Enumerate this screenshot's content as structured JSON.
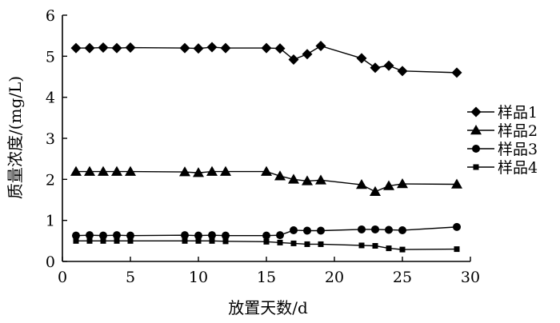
{
  "chart_data": {
    "type": "line",
    "xlabel": "放置天数/d",
    "ylabel": "质量浓度/(mg/L)",
    "xlim": [
      0,
      30
    ],
    "ylim": [
      0,
      6
    ],
    "x_ticks": [
      "0",
      "5",
      "10",
      "15",
      "20",
      "25",
      "30"
    ],
    "y_ticks": [
      "0",
      "1",
      "2",
      "3",
      "4",
      "5",
      "6"
    ],
    "grid": false,
    "legend_position": "right",
    "series": [
      {
        "name": "样品1",
        "marker": "diamond",
        "x": [
          1,
          2,
          3,
          4,
          5,
          9,
          10,
          11,
          12,
          15,
          16,
          17,
          18,
          19,
          22,
          23,
          24,
          25,
          29
        ],
        "y": [
          5.2,
          5.2,
          5.21,
          5.2,
          5.21,
          5.2,
          5.19,
          5.22,
          5.2,
          5.2,
          5.19,
          4.92,
          5.05,
          5.25,
          4.95,
          4.72,
          4.77,
          4.64,
          4.6
        ]
      },
      {
        "name": "样品2",
        "marker": "triangle",
        "x": [
          1,
          2,
          3,
          4,
          5,
          9,
          10,
          11,
          12,
          15,
          16,
          17,
          18,
          19,
          22,
          23,
          24,
          25,
          29
        ],
        "y": [
          2.19,
          2.19,
          2.19,
          2.19,
          2.19,
          2.18,
          2.16,
          2.19,
          2.19,
          2.19,
          2.08,
          2.0,
          1.96,
          1.98,
          1.87,
          1.7,
          1.84,
          1.89,
          1.88
        ]
      },
      {
        "name": "样品3",
        "marker": "circle",
        "x": [
          1,
          2,
          3,
          4,
          5,
          9,
          10,
          11,
          12,
          15,
          16,
          17,
          18,
          19,
          22,
          23,
          24,
          25,
          29
        ],
        "y": [
          0.63,
          0.64,
          0.63,
          0.64,
          0.63,
          0.64,
          0.63,
          0.64,
          0.63,
          0.63,
          0.64,
          0.76,
          0.75,
          0.75,
          0.78,
          0.78,
          0.77,
          0.76,
          0.84
        ]
      },
      {
        "name": "样品4",
        "marker": "square",
        "x": [
          1,
          2,
          3,
          4,
          5,
          9,
          10,
          11,
          12,
          15,
          16,
          17,
          18,
          19,
          22,
          23,
          24,
          25,
          29
        ],
        "y": [
          0.5,
          0.5,
          0.5,
          0.5,
          0.5,
          0.5,
          0.5,
          0.5,
          0.49,
          0.48,
          0.46,
          0.44,
          0.42,
          0.42,
          0.39,
          0.38,
          0.32,
          0.29,
          0.3
        ]
      }
    ]
  }
}
